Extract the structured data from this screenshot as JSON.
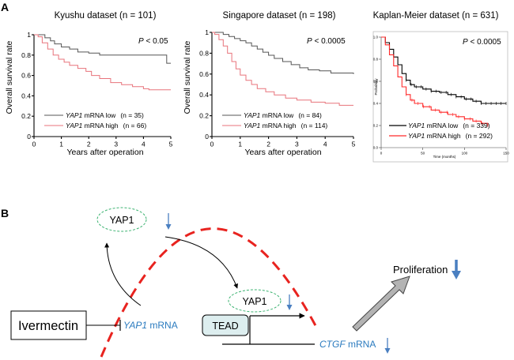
{
  "panel_a": {
    "label": "A",
    "charts": [
      {
        "title": "Kyushu dataset (n = 101)",
        "p_prefix": "P",
        "p_value": " < 0.05",
        "ylabel": "Overall survival rate",
        "xlabel": "Years after operation",
        "y_ticks": [
          "0",
          "0.2",
          "0.4",
          "0.6",
          "0.8",
          "1"
        ],
        "x_ticks": [
          "0",
          "1",
          "2",
          "3",
          "4",
          "5"
        ],
        "legend": [
          {
            "gene": "YAP1",
            "label": " mRNA low",
            "n": "(n = 35)"
          },
          {
            "gene": "YAP1",
            "label": " mRNA high",
            "n": "(n = 66)"
          }
        ]
      },
      {
        "title": "Singapore dataset (n = 198)",
        "p_prefix": "P",
        "p_value": " < 0.0005",
        "ylabel": "Overall survival rate",
        "xlabel": "Years after operation",
        "y_ticks": [
          "0",
          "0.2",
          "0.4",
          "0.6",
          "0.8",
          "1"
        ],
        "x_ticks": [
          "0",
          "1",
          "2",
          "3",
          "4",
          "5"
        ],
        "legend": [
          {
            "gene": "YAP1",
            "label": " mRNA low",
            "n": "(n = 84)"
          },
          {
            "gene": "YAP1",
            "label": " mRNA high",
            "n": "(n = 114)"
          }
        ]
      },
      {
        "title": "Kaplan-Meier dataset (n = 631)",
        "p_prefix": "P",
        "p_value": " < 0.0005",
        "ylabel": "Probability",
        "xlabel": "Time (months)",
        "y_ticks": [
          "0.0",
          "0.2",
          "0.4",
          "0.6",
          "0.8",
          "1.0"
        ],
        "x_ticks": [
          "0",
          "50",
          "100",
          "150"
        ],
        "legend": [
          {
            "gene": "YAP1",
            "label": " mRNA low",
            "n": "(n = 339)"
          },
          {
            "gene": "YAP1",
            "label": " mRNA high",
            "n": "(n = 292)"
          }
        ]
      }
    ]
  },
  "chart_data": [
    {
      "type": "line",
      "title": "Kyushu dataset (n = 101)",
      "xlabel": "Years after operation",
      "ylabel": "Overall survival rate",
      "xlim": [
        0,
        5
      ],
      "ylim": [
        0,
        1
      ],
      "series": [
        {
          "name": "YAP1 mRNA low (n = 35)",
          "color": "#555555",
          "points": [
            [
              0,
              1
            ],
            [
              0.35,
              1
            ],
            [
              0.4,
              0.97
            ],
            [
              0.6,
              0.94
            ],
            [
              0.75,
              0.91
            ],
            [
              1.0,
              0.88
            ],
            [
              1.3,
              0.86
            ],
            [
              1.6,
              0.83
            ],
            [
              2.0,
              0.82
            ],
            [
              2.4,
              0.8
            ],
            [
              3.5,
              0.8
            ],
            [
              4.8,
              0.8
            ],
            [
              4.85,
              0.72
            ],
            [
              5,
              0.72
            ]
          ]
        },
        {
          "name": "YAP1 mRNA high (n = 66)",
          "color": "#e8737b",
          "points": [
            [
              0,
              1
            ],
            [
              0.15,
              0.98
            ],
            [
              0.3,
              0.92
            ],
            [
              0.5,
              0.86
            ],
            [
              0.7,
              0.8
            ],
            [
              0.9,
              0.76
            ],
            [
              1.1,
              0.73
            ],
            [
              1.3,
              0.7
            ],
            [
              1.6,
              0.67
            ],
            [
              1.9,
              0.64
            ],
            [
              2.1,
              0.6
            ],
            [
              2.4,
              0.57
            ],
            [
              2.8,
              0.53
            ],
            [
              3.2,
              0.51
            ],
            [
              3.6,
              0.49
            ],
            [
              4.0,
              0.47
            ],
            [
              4.2,
              0.46
            ],
            [
              5,
              0.46
            ]
          ]
        }
      ]
    },
    {
      "type": "line",
      "title": "Singapore dataset (n = 198)",
      "xlabel": "Years after operation",
      "ylabel": "Overall survival rate",
      "xlim": [
        0,
        5
      ],
      "ylim": [
        0,
        1
      ],
      "series": [
        {
          "name": "YAP1 mRNA low (n = 84)",
          "color": "#555555",
          "points": [
            [
              0,
              1
            ],
            [
              0.2,
              1
            ],
            [
              0.4,
              0.98
            ],
            [
              0.6,
              0.96
            ],
            [
              0.8,
              0.94
            ],
            [
              1.0,
              0.92
            ],
            [
              1.2,
              0.9
            ],
            [
              1.4,
              0.87
            ],
            [
              1.6,
              0.84
            ],
            [
              1.8,
              0.81
            ],
            [
              2.0,
              0.78
            ],
            [
              2.2,
              0.75
            ],
            [
              2.5,
              0.72
            ],
            [
              2.8,
              0.69
            ],
            [
              3.1,
              0.66
            ],
            [
              3.4,
              0.64
            ],
            [
              3.8,
              0.63
            ],
            [
              4.2,
              0.61
            ],
            [
              5,
              0.6
            ]
          ]
        },
        {
          "name": "YAP1 mRNA high (n = 114)",
          "color": "#e8737b",
          "points": [
            [
              0,
              1
            ],
            [
              0.1,
              0.98
            ],
            [
              0.25,
              0.93
            ],
            [
              0.4,
              0.87
            ],
            [
              0.55,
              0.8
            ],
            [
              0.7,
              0.72
            ],
            [
              0.85,
              0.65
            ],
            [
              1.0,
              0.59
            ],
            [
              1.2,
              0.54
            ],
            [
              1.4,
              0.5
            ],
            [
              1.6,
              0.46
            ],
            [
              1.9,
              0.43
            ],
            [
              2.2,
              0.4
            ],
            [
              2.6,
              0.37
            ],
            [
              3.0,
              0.35
            ],
            [
              3.5,
              0.33
            ],
            [
              4.0,
              0.32
            ],
            [
              4.5,
              0.3
            ],
            [
              5,
              0.3
            ]
          ]
        }
      ]
    },
    {
      "type": "line",
      "title": "Kaplan-Meier dataset (n = 631)",
      "xlabel": "Time (months)",
      "ylabel": "Probability",
      "xlim": [
        0,
        150
      ],
      "ylim": [
        0,
        1
      ],
      "series": [
        {
          "name": "YAP1 mRNA low (n = 339)",
          "color": "#000000",
          "points": [
            [
              0,
              1
            ],
            [
              5,
              0.95
            ],
            [
              10,
              0.89
            ],
            [
              15,
              0.82
            ],
            [
              20,
              0.75
            ],
            [
              25,
              0.67
            ],
            [
              30,
              0.61
            ],
            [
              35,
              0.57
            ],
            [
              40,
              0.55
            ],
            [
              50,
              0.53
            ],
            [
              60,
              0.51
            ],
            [
              70,
              0.5
            ],
            [
              80,
              0.48
            ],
            [
              90,
              0.46
            ],
            [
              100,
              0.44
            ],
            [
              110,
              0.42
            ],
            [
              120,
              0.4
            ],
            [
              130,
              0.4
            ],
            [
              150,
              0.4
            ]
          ]
        },
        {
          "name": "YAP1 mRNA high (n = 292)",
          "color": "#ff2a2a",
          "points": [
            [
              0,
              1
            ],
            [
              5,
              0.93
            ],
            [
              10,
              0.84
            ],
            [
              15,
              0.74
            ],
            [
              20,
              0.64
            ],
            [
              25,
              0.55
            ],
            [
              30,
              0.48
            ],
            [
              35,
              0.43
            ],
            [
              40,
              0.4
            ],
            [
              50,
              0.37
            ],
            [
              60,
              0.34
            ],
            [
              70,
              0.32
            ],
            [
              80,
              0.3
            ],
            [
              90,
              0.28
            ],
            [
              100,
              0.26
            ],
            [
              110,
              0.24
            ],
            [
              120,
              0.22
            ],
            [
              128,
              0.2
            ]
          ]
        }
      ]
    }
  ],
  "panel_b": {
    "label": "B",
    "yap1_top": "YAP1",
    "yap1_bottom": "YAP1",
    "ivermectin": "Ivermectin",
    "yap1_mrna_gene": "YAP1",
    "yap1_mrna_suffix": " mRNA",
    "tead": "TEAD",
    "ctgf_gene": "CTGF",
    "ctgf_suffix": " mRNA",
    "proliferation": "Proliferation",
    "colors": {
      "dashed_arc": "#e8231f",
      "oval": "#3cb371",
      "blue_arrow": "#4a7fc1",
      "text_blue": "#2b7bbf"
    }
  }
}
